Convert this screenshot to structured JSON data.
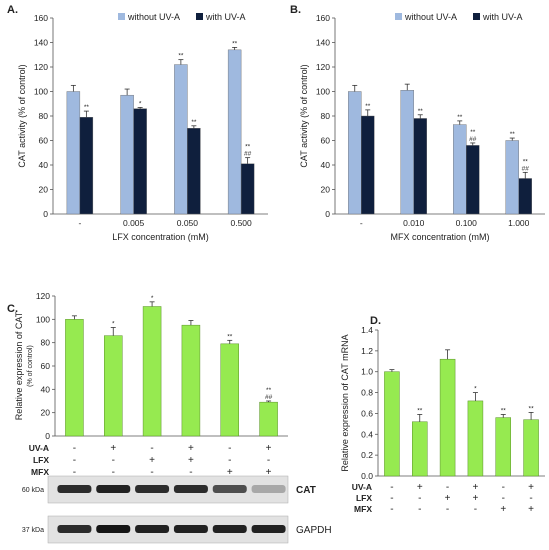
{
  "colors": {
    "without": "#9fb9df",
    "with": "#0f1f3d",
    "green": "#96ea50",
    "axis": "#555555",
    "text": "#222222"
  },
  "chart_data": [
    {
      "panel": "A.",
      "type": "bar",
      "ylabel": "CAT activity (% of control)",
      "xlabel": "LFX concentration (mM)",
      "categories": [
        "-",
        "0.005",
        "0.050",
        "0.500"
      ],
      "yticks": [
        "0",
        "20",
        "40",
        "60",
        "80",
        "100",
        "120",
        "140",
        "160"
      ],
      "ylim": [
        0,
        160
      ],
      "legend": [
        "without UV-A",
        "with UV-A"
      ],
      "legend_position": "top-right",
      "series": [
        {
          "name": "without UV-A",
          "values": [
            100,
            97,
            122,
            134
          ],
          "errors": [
            5,
            5,
            4,
            2
          ],
          "sig": [
            "",
            "",
            "**",
            "**"
          ]
        },
        {
          "name": "with UV-A",
          "values": [
            79,
            86,
            70,
            41
          ],
          "errors": [
            5,
            1,
            2,
            5
          ],
          "sig": [
            "**",
            "*",
            "**",
            "**\n##"
          ]
        }
      ]
    },
    {
      "panel": "B.",
      "type": "bar",
      "ylabel": "CAT activity (% of control)",
      "xlabel": "MFX concentration (mM)",
      "categories": [
        "-",
        "0.010",
        "0.100",
        "1.000"
      ],
      "yticks": [
        "0",
        "20",
        "40",
        "60",
        "80",
        "100",
        "120",
        "140",
        "160"
      ],
      "ylim": [
        0,
        160
      ],
      "legend": [
        "without UV-A",
        "with UV-A"
      ],
      "legend_position": "top-right",
      "series": [
        {
          "name": "without UV-A",
          "values": [
            100,
            101,
            73,
            60
          ],
          "errors": [
            5,
            5,
            3,
            2
          ],
          "sig": [
            "",
            "",
            "**",
            "**"
          ]
        },
        {
          "name": "with UV-A",
          "values": [
            80,
            78,
            56,
            29
          ],
          "errors": [
            5,
            3,
            2,
            5
          ],
          "sig": [
            "**",
            "**",
            "**\n##",
            "**\n##"
          ]
        }
      ]
    },
    {
      "panel": "C.",
      "type": "bar",
      "ylabel": "Relative expression of CAT",
      "ylabel2": "(% of control)",
      "yticks": [
        "0",
        "20",
        "40",
        "60",
        "80",
        "100",
        "120"
      ],
      "ylim": [
        0,
        120
      ],
      "values": [
        100,
        86,
        111,
        95,
        79,
        29
      ],
      "errors": [
        3,
        7,
        4,
        4,
        3,
        1
      ],
      "sig": [
        "",
        "*",
        "*",
        "",
        "**",
        "**\n##"
      ],
      "conditions": [
        {
          "label": "UV-A",
          "values": [
            "-",
            "+",
            "-",
            "+",
            "-",
            "+"
          ]
        },
        {
          "label": "LFX",
          "values": [
            "-",
            "-",
            "+",
            "+",
            "-",
            "-"
          ]
        },
        {
          "label": "MFX",
          "values": [
            "-",
            "-",
            "-",
            "-",
            "+",
            "+"
          ]
        }
      ],
      "blots": [
        {
          "kda": "60 kDa",
          "label": "CAT",
          "intensity": [
            0.85,
            0.9,
            0.85,
            0.85,
            0.7,
            0.3
          ]
        },
        {
          "kda": "37 kDa",
          "label": "GAPDH",
          "intensity": [
            0.85,
            0.95,
            0.9,
            0.9,
            0.9,
            0.9
          ]
        }
      ]
    },
    {
      "panel": "D.",
      "type": "bar",
      "ylabel": "Relative expression of CAT mRNA",
      "yticks": [
        "0.0",
        "0.2",
        "0.4",
        "0.6",
        "0.8",
        "1.0",
        "1.2",
        "1.4"
      ],
      "ylim": [
        0,
        1.4
      ],
      "values": [
        1.0,
        0.52,
        1.12,
        0.72,
        0.56,
        0.54
      ],
      "errors": [
        0.02,
        0.07,
        0.09,
        0.08,
        0.03,
        0.07
      ],
      "sig": [
        "",
        "**",
        "",
        "*",
        "**",
        "**"
      ],
      "conditions": [
        {
          "label": "UV-A",
          "values": [
            "-",
            "+",
            "-",
            "+",
            "-",
            "+"
          ]
        },
        {
          "label": "LFX",
          "values": [
            "-",
            "-",
            "+",
            "+",
            "-",
            "-"
          ]
        },
        {
          "label": "MFX",
          "values": [
            "-",
            "-",
            "-",
            "-",
            "+",
            "+"
          ]
        }
      ]
    }
  ]
}
